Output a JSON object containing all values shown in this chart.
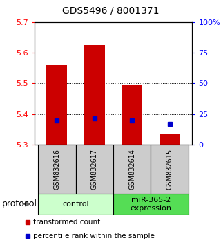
{
  "title": "GDS5496 / 8001371",
  "samples": [
    "GSM832616",
    "GSM832617",
    "GSM832614",
    "GSM832615"
  ],
  "bar_bottom": 5.3,
  "bar_tops": [
    5.56,
    5.625,
    5.495,
    5.335
  ],
  "percentile_values": [
    5.378,
    5.385,
    5.378,
    5.368
  ],
  "ylim": [
    5.3,
    5.7
  ],
  "yticks_left": [
    5.3,
    5.4,
    5.5,
    5.6,
    5.7
  ],
  "ytick_labels_right": [
    "0",
    "25",
    "50",
    "75",
    "100%"
  ],
  "gridlines": [
    5.4,
    5.5,
    5.6
  ],
  "bar_color": "#cc0000",
  "percentile_color": "#0000cc",
  "groups": [
    {
      "label": "control",
      "samples": [
        0,
        1
      ],
      "color": "#ccffcc"
    },
    {
      "label": "miR-365-2\nexpression",
      "samples": [
        2,
        3
      ],
      "color": "#55dd55"
    }
  ],
  "protocol_label": "protocol",
  "legend_items": [
    {
      "color": "#cc0000",
      "label": "transformed count"
    },
    {
      "color": "#0000cc",
      "label": "percentile rank within the sample"
    }
  ],
  "sample_bg_color": "#cccccc",
  "bar_width": 0.55,
  "title_fontsize": 10,
  "tick_fontsize": 8,
  "sample_fontsize": 7,
  "group_fontsize": 8,
  "legend_fontsize": 7.5
}
